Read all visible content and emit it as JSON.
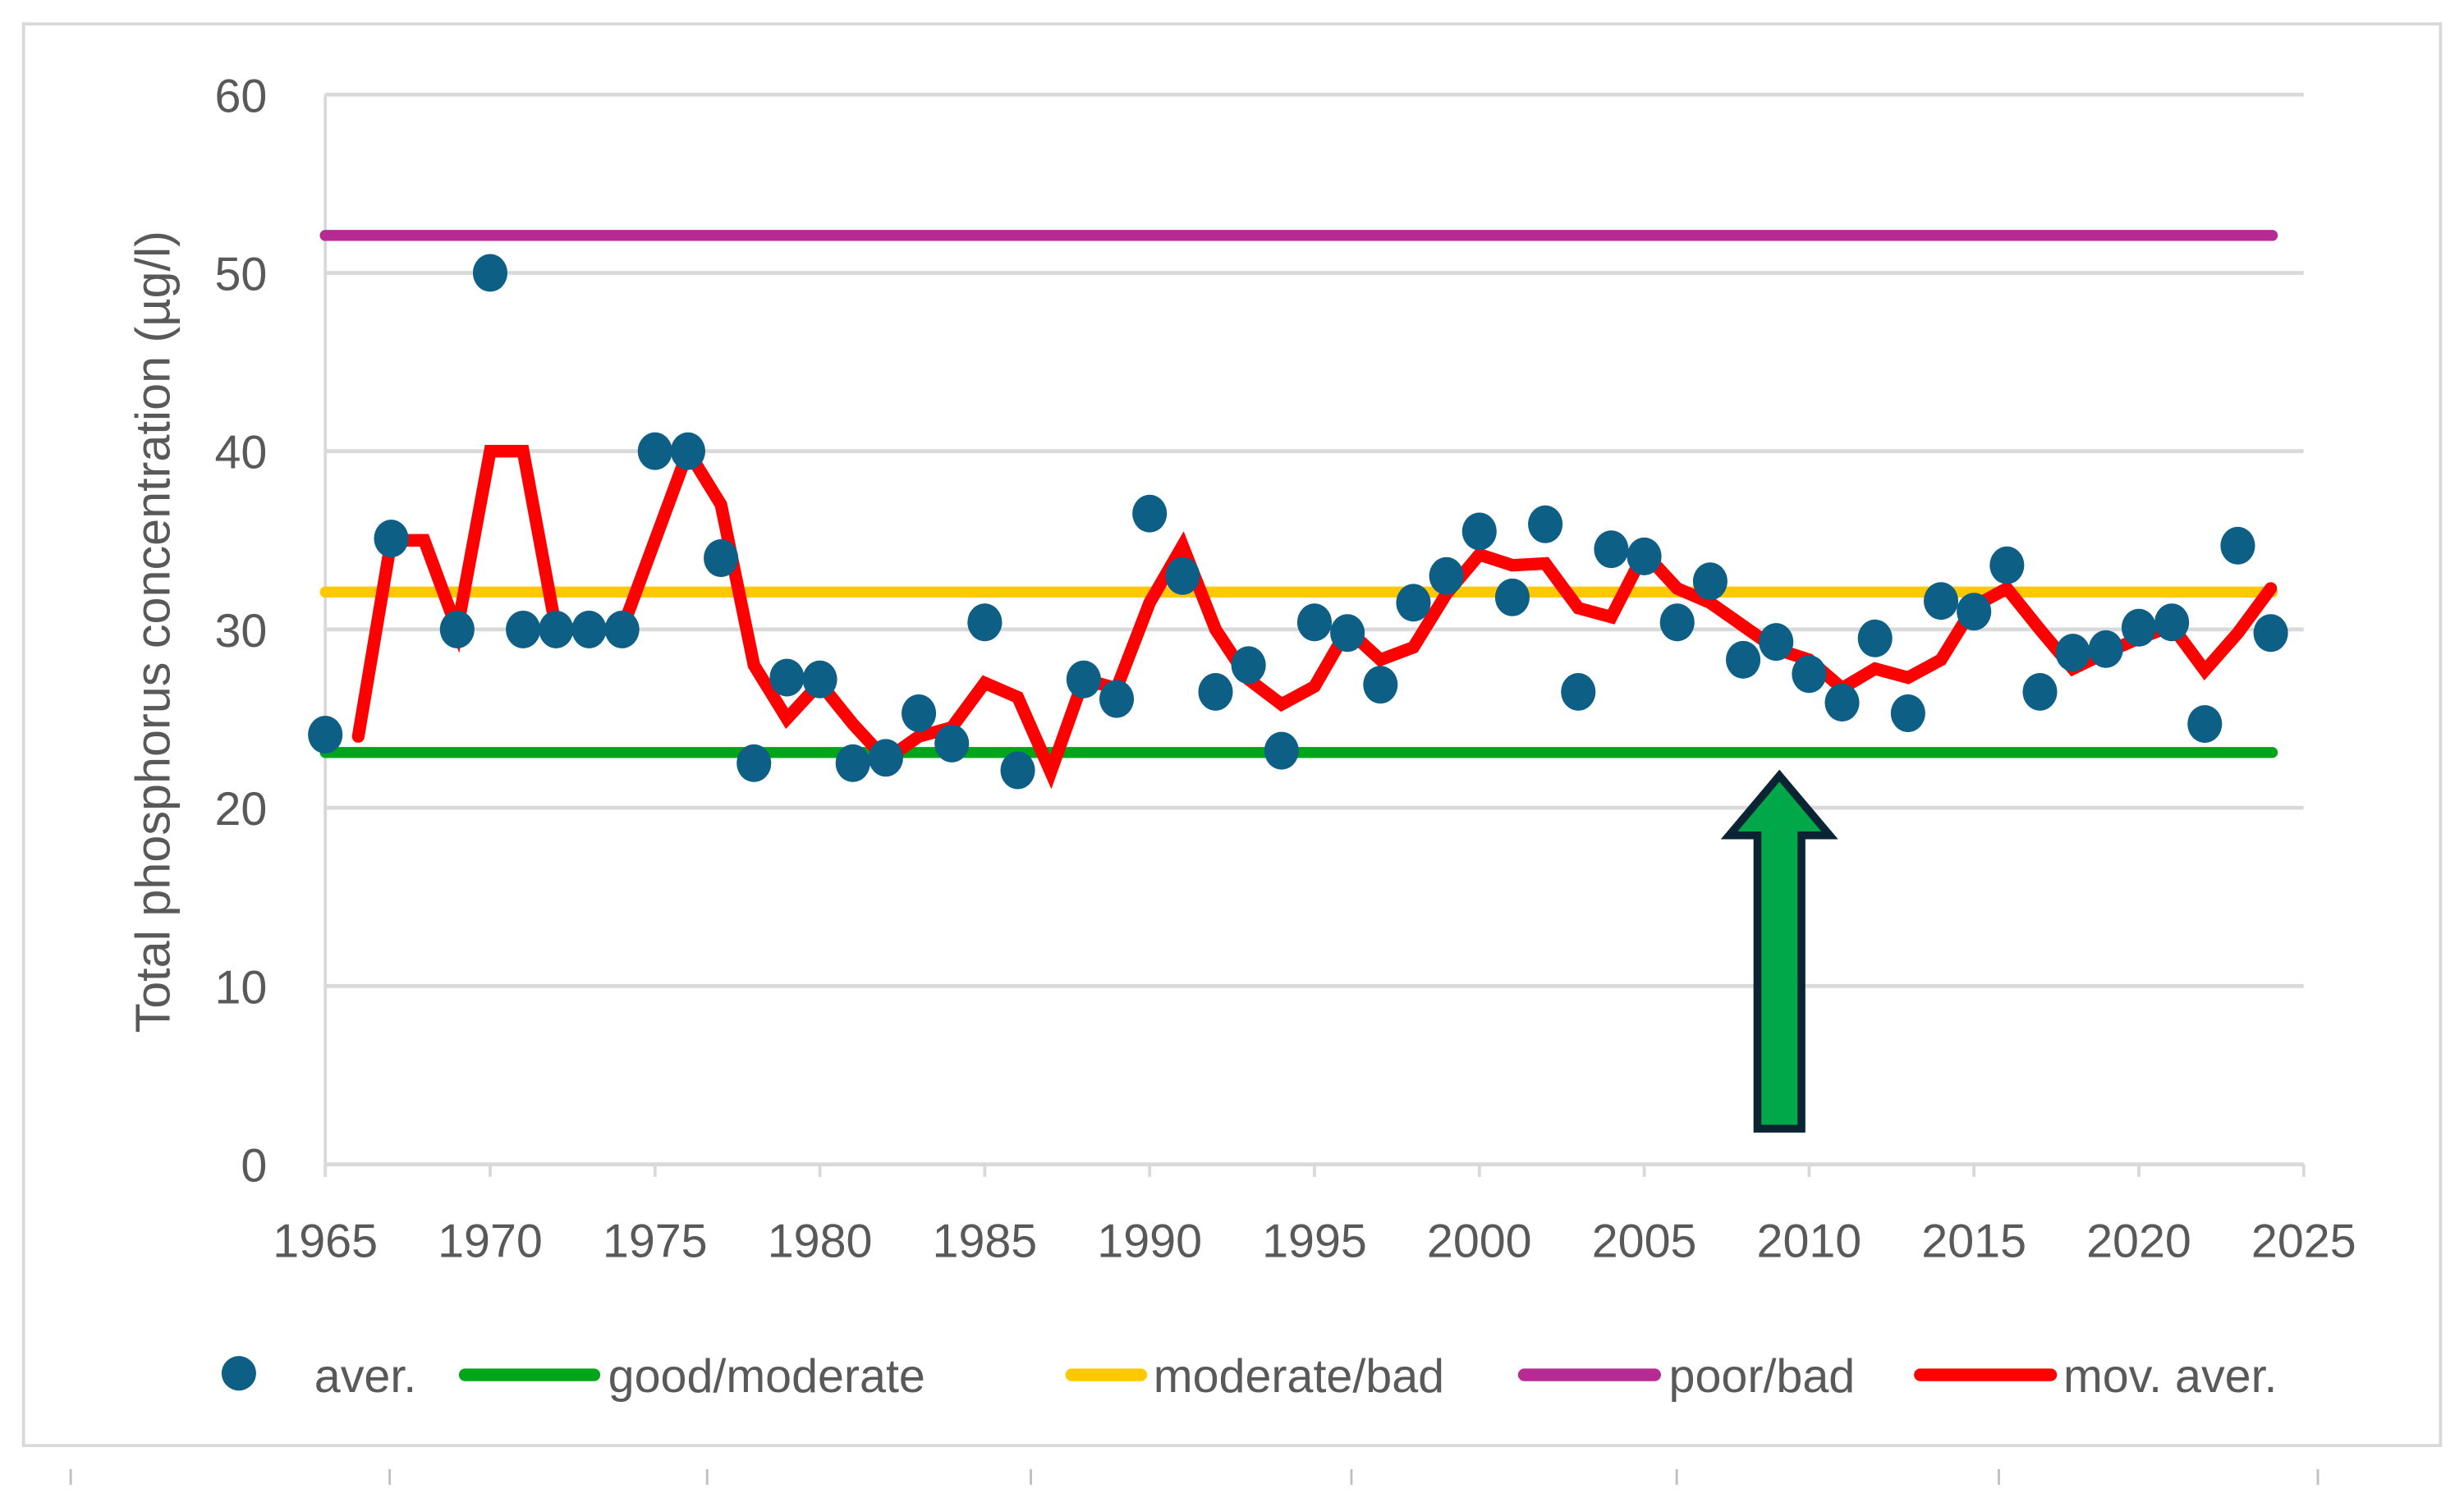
{
  "chart_data": {
    "type": "line",
    "title": "",
    "xlabel": "",
    "ylabel": "Total phosphorus concentration (µg/l)",
    "xlim": [
      1965,
      2025
    ],
    "ylim": [
      0,
      60
    ],
    "x_ticks": [
      "1965",
      "1970",
      "1975",
      "1980",
      "1985",
      "1990",
      "1995",
      "2000",
      "2005",
      "2010",
      "2015",
      "2020",
      "2025"
    ],
    "y_ticks": [
      "0",
      "10",
      "20",
      "30",
      "40",
      "50",
      "60"
    ],
    "grid": "horizontal",
    "legend_position": "bottom",
    "series": [
      {
        "name": "aver.",
        "kind": "scatter",
        "color": "#0e5f86",
        "x": [
          1965,
          1967,
          1969,
          1970,
          1971,
          1972,
          1973,
          1974,
          1975,
          1976,
          1977,
          1978,
          1979,
          1980,
          1981,
          1982,
          1983,
          1984,
          1985,
          1986,
          1988,
          1989,
          1990,
          1991,
          1992,
          1993,
          1994,
          1995,
          1996,
          1997,
          1998,
          1999,
          2000,
          2001,
          2002,
          2003,
          2004,
          2005,
          2006,
          2007,
          2008,
          2009,
          2010,
          2011,
          2012,
          2013,
          2014,
          2015,
          2016,
          2017,
          2018,
          2019,
          2020,
          2021,
          2022,
          2023,
          2024
        ],
        "y": [
          24.1,
          35.1,
          30,
          50,
          30,
          30,
          30,
          30,
          40,
          40,
          34,
          22.5,
          27.3,
          27.2,
          22.5,
          22.8,
          25.3,
          23.6,
          30.4,
          22.1,
          27.2,
          26.1,
          36.5,
          33,
          26.5,
          28,
          23.2,
          30.4,
          29.8,
          26.9,
          31.5,
          33,
          35.5,
          31.8,
          35.9,
          26.5,
          34.5,
          34.1,
          30.4,
          32.7,
          28.3,
          29.3,
          27.5,
          25.9,
          29.5,
          25.3,
          31.6,
          31,
          33.6,
          26.5,
          28.7,
          28.9,
          30.1,
          30.4,
          24.7,
          34.7,
          29.8
        ]
      },
      {
        "name": "good/moderate",
        "kind": "threshold",
        "color": "#00a51a",
        "value": 23.1
      },
      {
        "name": "moderate/bad",
        "kind": "threshold",
        "color": "#ffc800",
        "value": 32.1
      },
      {
        "name": "poor/bad",
        "kind": "threshold",
        "color": "#b52a93",
        "value": 52.1
      },
      {
        "name": "mov. aver.",
        "kind": "line",
        "color": "#ff0000",
        "x": [
          1966,
          1967,
          1968,
          1969,
          1970,
          1971,
          1972,
          1973,
          1974,
          1975,
          1976,
          1977,
          1978,
          1979,
          1980,
          1981,
          1982,
          1983,
          1984,
          1985,
          1986,
          1987,
          1988,
          1989,
          1990,
          1991,
          1992,
          1993,
          1994,
          1995,
          1996,
          1997,
          1998,
          1999,
          2000,
          2001,
          2002,
          2003,
          2004,
          2005,
          2006,
          2007,
          2008,
          2009,
          2010,
          2011,
          2012,
          2013,
          2014,
          2015,
          2016,
          2017,
          2018,
          2019,
          2020,
          2021,
          2022,
          2023,
          2024
        ],
        "y": [
          24,
          35,
          35,
          30,
          40,
          40,
          30,
          30,
          30,
          35,
          40,
          37,
          28,
          25,
          27,
          24.7,
          22.7,
          24,
          24.5,
          27,
          26.2,
          22,
          27.2,
          26.7,
          31.5,
          34.7,
          30,
          27.2,
          25.8,
          26.8,
          30,
          28.3,
          29,
          32,
          34.2,
          33.6,
          33.7,
          31.2,
          30.7,
          34.3,
          32.3,
          31.5,
          30.2,
          28.9,
          28.3,
          26.7,
          27.8,
          27.3,
          28.3,
          31.3,
          32.3,
          30,
          27.8,
          28.7,
          29.5,
          30.2,
          27.7,
          29.8,
          32.3
        ]
      }
    ],
    "annotations": [
      {
        "kind": "arrow",
        "direction": "up",
        "x": 2009.1,
        "y_from": 2,
        "y_to": 21.8,
        "fill": "#00a84a",
        "stroke": "#0b2433"
      }
    ]
  }
}
